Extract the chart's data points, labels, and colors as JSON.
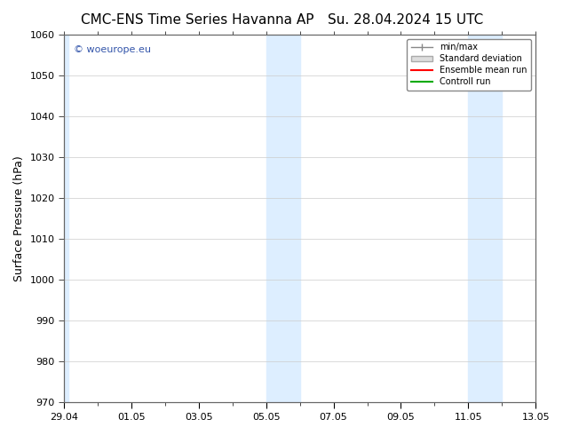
{
  "title_left": "CMC-ENS Time Series Havanna AP",
  "title_right": "Su. 28.04.2024 15 UTC",
  "ylabel": "Surface Pressure (hPa)",
  "ylim": [
    970,
    1060
  ],
  "yticks": [
    970,
    980,
    990,
    1000,
    1010,
    1020,
    1030,
    1040,
    1050,
    1060
  ],
  "xlim_start": "29.04",
  "xlim_end": "13.05",
  "xtick_labels": [
    "29.04",
    "01.05",
    "03.05",
    "05.05",
    "07.05",
    "09.05",
    "11.05",
    "13.05"
  ],
  "xtick_positions": [
    0,
    2,
    4,
    6,
    8,
    10,
    12,
    14
  ],
  "shaded_columns": [
    6,
    12,
    22,
    24
  ],
  "bg_color": "#ffffff",
  "shade_color": "#ddeeff",
  "watermark": "© woeurope.eu",
  "legend_entries": [
    "min/max",
    "Standard deviation",
    "Ensemble mean run",
    "Controll run"
  ],
  "legend_colors": [
    "#aaaaaa",
    "#cccccc",
    "#ff0000",
    "#00aa00"
  ],
  "legend_line_styles": [
    "-",
    "-",
    "-",
    "-"
  ],
  "grid_color": "#cccccc",
  "title_fontsize": 11,
  "tick_fontsize": 8,
  "ylabel_fontsize": 9
}
